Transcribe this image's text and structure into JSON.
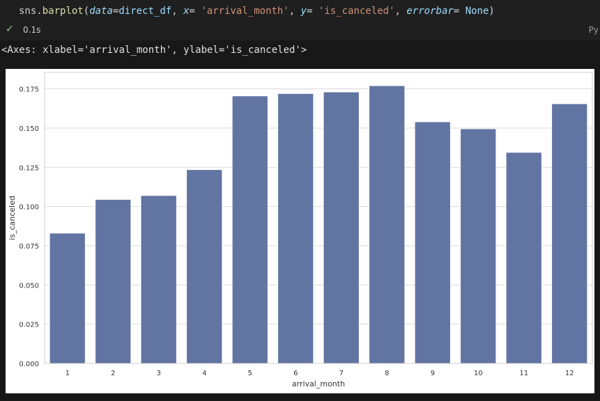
{
  "cell": {
    "code": {
      "obj": "sns",
      "dot": ".",
      "fn": "barplot",
      "lparen": "(",
      "kw1": "data",
      "eq1": "=",
      "arg1": "direct_df",
      "comma1": ", ",
      "kw2": "x",
      "eq2": "= ",
      "str1": "'arrival_month'",
      "comma2": ", ",
      "kw3": "y",
      "eq3": "= ",
      "str2": "'is_canceled'",
      "comma3": ", ",
      "kw4": "errorbar",
      "eq4": "= ",
      "const1": "None",
      "rparen": ")"
    },
    "status_icon": "check-icon",
    "exec_time": "0.1s",
    "language": "Py"
  },
  "output": {
    "repr": "<Axes: xlabel='arrival_month', ylabel='is_canceled'>"
  },
  "chart_data": {
    "type": "bar",
    "categories": [
      "1",
      "2",
      "3",
      "4",
      "5",
      "6",
      "7",
      "8",
      "9",
      "10",
      "11",
      "12"
    ],
    "values": [
      0.083,
      0.1045,
      0.107,
      0.1235,
      0.1705,
      0.172,
      0.173,
      0.177,
      0.154,
      0.1495,
      0.1345,
      0.1655
    ],
    "xlabel": "arrival_month",
    "ylabel": "is_canceled",
    "yticks": [
      "0.000",
      "0.025",
      "0.050",
      "0.075",
      "0.100",
      "0.125",
      "0.150",
      "0.175"
    ],
    "ylim": [
      0,
      0.1855
    ],
    "grid": "horizontal",
    "bar_color": "#6274a2"
  }
}
